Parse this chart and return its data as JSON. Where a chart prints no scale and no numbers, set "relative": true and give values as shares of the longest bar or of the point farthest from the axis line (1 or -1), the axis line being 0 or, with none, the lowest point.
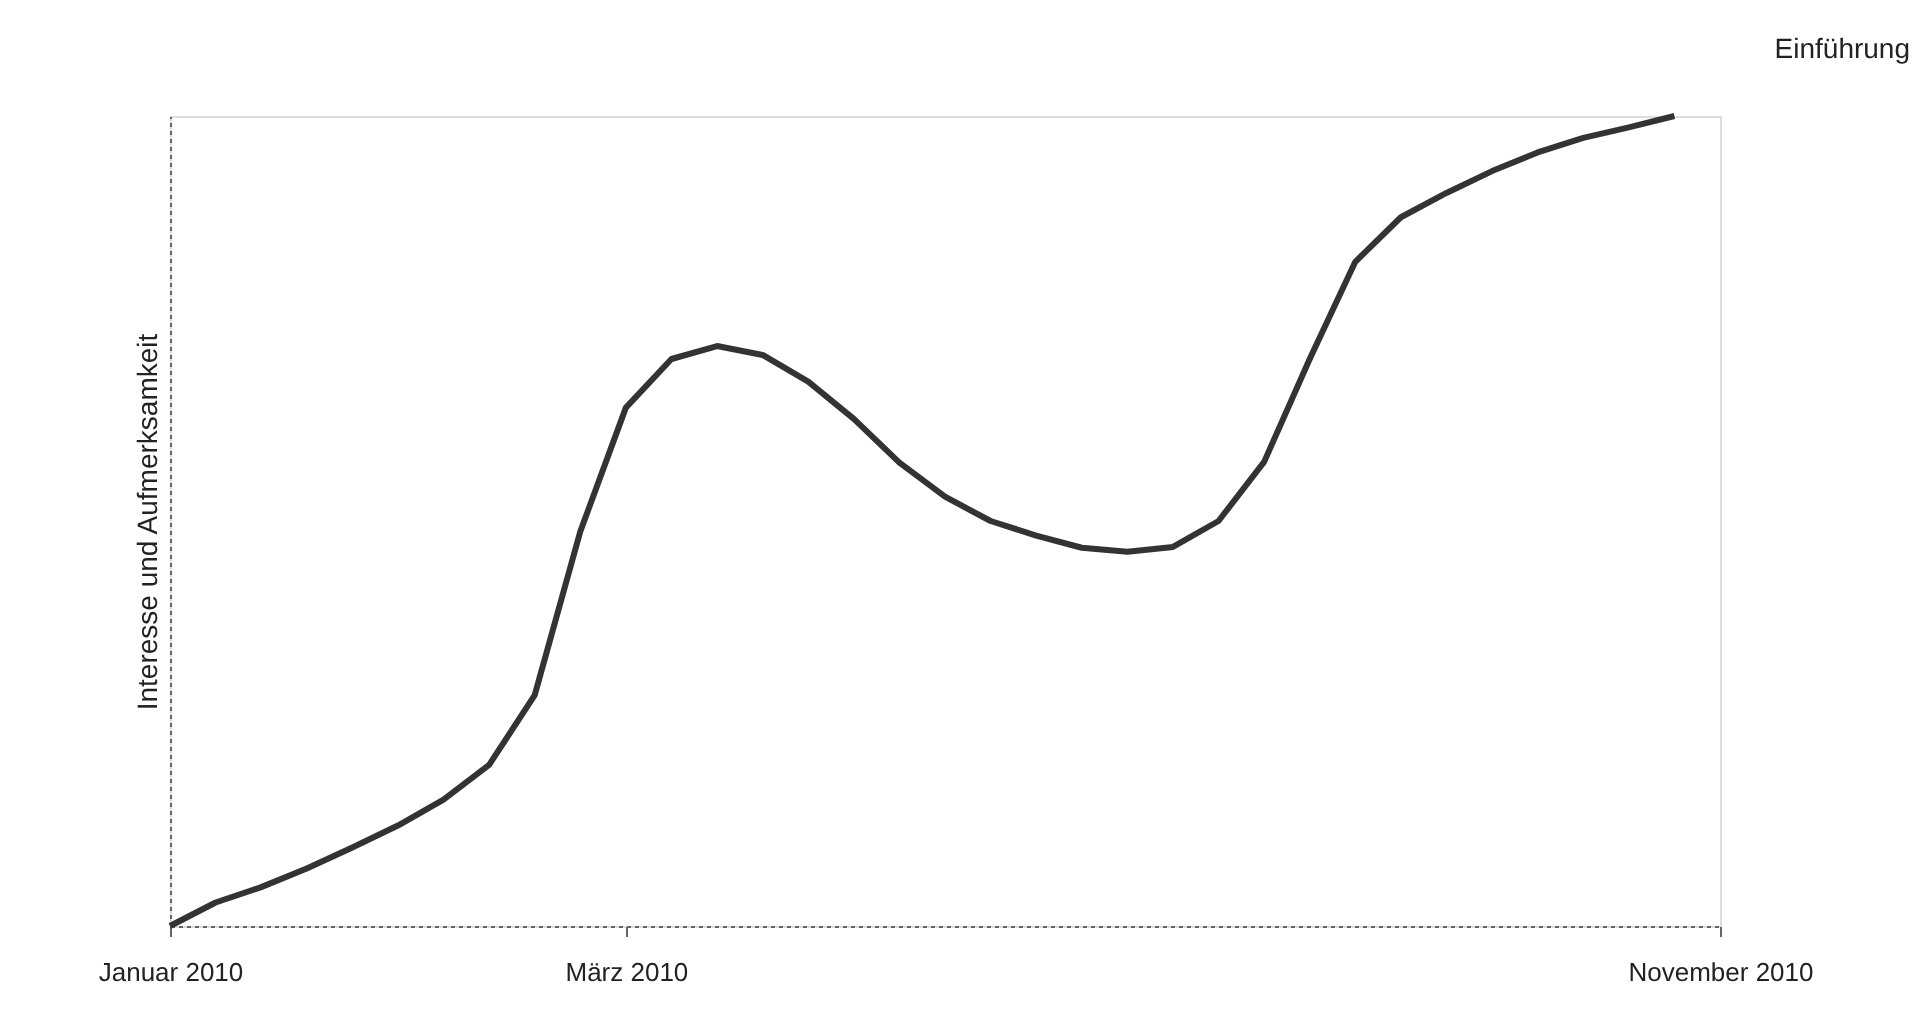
{
  "chart_data": {
    "type": "line",
    "relative": true,
    "ylabel": "Interesse und Aufmerksamkeit",
    "categories": [
      "Januar 2010",
      null,
      null,
      null,
      null,
      null,
      null,
      null,
      null,
      null,
      "März 2010",
      null,
      null,
      null,
      null,
      null,
      null,
      null,
      null,
      null,
      null,
      null,
      null,
      null,
      null,
      null,
      null,
      null,
      null,
      null,
      null,
      null,
      null,
      null,
      "November 2010"
    ],
    "series": [
      {
        "color": "#333333",
        "values": [
          0.0,
          0.029,
          0.048,
          0.071,
          0.097,
          0.124,
          0.156,
          0.199,
          0.285,
          0.487,
          0.64,
          0.7,
          0.716,
          0.705,
          0.672,
          0.626,
          0.572,
          0.53,
          0.5,
          0.482,
          0.467,
          0.462,
          0.468,
          0.5,
          0.573,
          0.7,
          0.82,
          0.875,
          0.905,
          0.932,
          0.955,
          0.973,
          0.986,
          1.0,
          null
        ]
      }
    ],
    "annotations": [
      "Einführung"
    ],
    "grid": false,
    "marker": "none",
    "line_style": "solid"
  }
}
